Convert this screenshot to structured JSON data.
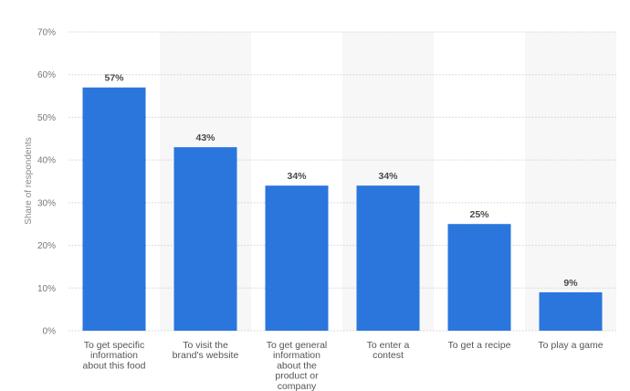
{
  "chart_data": {
    "type": "bar",
    "categories": [
      "To get specific information about this food",
      "To visit the brand's website",
      "To get general information about the product or company",
      "To enter a contest",
      "To get a recipe",
      "To play a game"
    ],
    "category_lines": [
      [
        "To get specific",
        "information",
        "about this food"
      ],
      [
        "To visit the",
        "brand's website"
      ],
      [
        "To get general",
        "information",
        "about the",
        "product or",
        "company"
      ],
      [
        "To enter a",
        "contest"
      ],
      [
        "To get a recipe"
      ],
      [
        "To play a game"
      ]
    ],
    "values": [
      57,
      43,
      34,
      34,
      25,
      9
    ],
    "value_labels": [
      "57%",
      "43%",
      "34%",
      "34%",
      "25%",
      "9%"
    ],
    "ylabel": "Share of respondents",
    "ylim": [
      0,
      70
    ],
    "yticks": [
      0,
      10,
      20,
      30,
      40,
      50,
      60,
      70
    ],
    "ytick_labels": [
      "0%",
      "10%",
      "20%",
      "30%",
      "40%",
      "50%",
      "60%",
      "70%"
    ],
    "grid": true,
    "colors": {
      "bar": "#2a76dd",
      "band": "#f7f7f7",
      "grid": "#cfcfcf"
    }
  }
}
